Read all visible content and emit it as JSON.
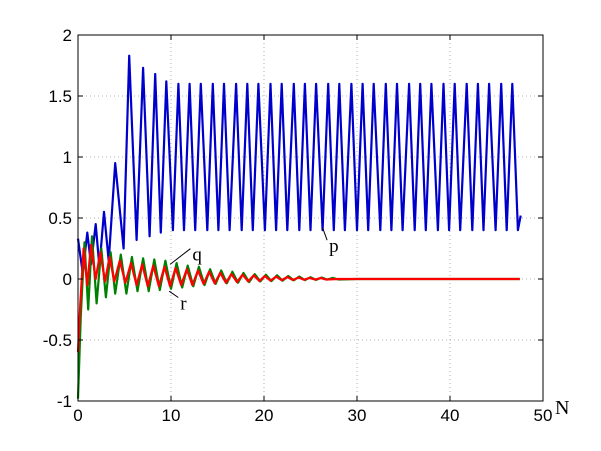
{
  "chart_data": {
    "type": "line",
    "xlabel": "N",
    "ylabel": "",
    "xlim": [
      0,
      50
    ],
    "ylim": [
      -1,
      2
    ],
    "xticks": [
      "0",
      "10",
      "20",
      "30",
      "40",
      "50"
    ],
    "yticks": [
      "-1",
      "-0.5",
      "0",
      "0.5",
      "1",
      "1.5",
      "2"
    ],
    "grid": true,
    "series": [
      {
        "name": "p",
        "color": "#0000cc",
        "x": [
          0,
          0.5,
          1.0,
          1.4,
          1.9,
          2.3,
          2.8,
          3.3,
          4.0,
          4.9,
          5.5,
          6.3,
          7.0,
          7.7,
          8.3,
          8.9,
          9.5,
          10.2,
          10.8,
          11.4,
          12.0,
          12.6,
          13.2,
          13.9,
          14.5,
          15.1,
          15.7,
          16.3,
          17.0,
          17.6,
          18.2,
          18.8,
          19.4,
          20.1,
          20.7,
          21.3,
          21.9,
          22.5,
          23.2,
          23.8,
          24.4,
          25.0,
          25.6,
          26.3,
          26.9,
          27.5,
          28.1,
          28.7,
          29.4,
          30.0,
          30.6,
          31.2,
          31.8,
          32.5,
          33.1,
          33.7,
          34.3,
          34.9,
          35.6,
          36.2,
          36.8,
          37.4,
          38.0,
          38.7,
          39.3,
          39.9,
          40.5,
          41.1,
          41.8,
          42.4,
          43.0,
          43.6,
          44.2,
          44.9,
          45.5,
          46.1,
          46.7,
          47.3,
          47.6
        ],
        "y": [
          0.33,
          0.05,
          0.38,
          0.12,
          0.45,
          0.1,
          0.55,
          0.15,
          0.95,
          0.25,
          1.83,
          0.32,
          1.73,
          0.35,
          1.68,
          0.38,
          1.62,
          0.4,
          1.6,
          0.4,
          1.6,
          0.4,
          1.6,
          0.4,
          1.6,
          0.4,
          1.6,
          0.4,
          1.6,
          0.4,
          1.6,
          0.4,
          1.6,
          0.4,
          1.6,
          0.4,
          1.6,
          0.4,
          1.6,
          0.4,
          1.6,
          0.4,
          1.6,
          0.4,
          1.6,
          0.4,
          1.6,
          0.4,
          1.6,
          0.4,
          1.6,
          0.4,
          1.6,
          0.4,
          1.6,
          0.4,
          1.6,
          0.4,
          1.6,
          0.4,
          1.6,
          0.4,
          1.6,
          0.4,
          1.6,
          0.4,
          1.6,
          0.4,
          1.6,
          0.4,
          1.6,
          0.4,
          1.6,
          0.4,
          1.6,
          0.4,
          1.6,
          0.4,
          0.52
        ]
      },
      {
        "name": "q",
        "color": "#008000",
        "x": [
          0,
          0.3,
          0.7,
          1.1,
          1.5,
          2.0,
          2.5,
          3.0,
          3.5,
          4.0,
          4.6,
          5.2,
          5.8,
          6.4,
          7.0,
          7.6,
          8.2,
          8.8,
          9.4,
          10.0,
          10.6,
          11.2,
          11.8,
          12.4,
          13.0,
          13.6,
          14.2,
          14.8,
          15.4,
          16.0,
          16.6,
          17.2,
          17.8,
          18.4,
          19.0,
          19.6,
          20.2,
          20.8,
          21.4,
          22.0,
          22.6,
          23.2,
          23.8,
          24.4,
          25.0,
          25.6,
          26.2,
          26.8,
          27.4,
          28.0,
          30.0,
          35.0,
          40.0,
          47.5
        ],
        "y": [
          -0.98,
          -0.3,
          0.3,
          -0.25,
          0.35,
          -0.2,
          0.25,
          -0.15,
          0.22,
          -0.12,
          0.2,
          -0.12,
          0.18,
          -0.1,
          0.17,
          -0.1,
          0.16,
          -0.09,
          0.15,
          -0.08,
          0.13,
          -0.07,
          0.11,
          -0.06,
          0.1,
          -0.05,
          0.08,
          -0.04,
          0.07,
          -0.035,
          0.06,
          -0.03,
          0.05,
          -0.025,
          0.04,
          -0.02,
          0.035,
          -0.017,
          0.03,
          -0.014,
          0.025,
          -0.011,
          0.02,
          -0.009,
          0.015,
          -0.007,
          0.012,
          -0.005,
          0.009,
          -0.004,
          0.0,
          0.0,
          0.0,
          0.0
        ]
      },
      {
        "name": "r",
        "color": "#ff0000",
        "x": [
          0,
          0.25,
          0.6,
          1.0,
          1.4,
          1.9,
          2.4,
          2.9,
          3.4,
          3.9,
          4.5,
          5.1,
          5.7,
          6.3,
          6.9,
          7.5,
          8.1,
          8.7,
          9.3,
          9.9,
          10.5,
          11.1,
          11.7,
          12.3,
          12.9,
          13.5,
          14.1,
          14.7,
          15.3,
          15.9,
          16.5,
          17.1,
          17.7,
          18.3,
          18.9,
          19.5,
          20.1,
          20.7,
          21.3,
          21.9,
          22.5,
          23.1,
          23.7,
          24.3,
          24.9,
          25.5,
          26.1,
          26.7,
          28.0,
          30.0,
          35.0,
          40.0,
          47.5
        ],
        "y": [
          -0.6,
          -0.2,
          0.25,
          -0.05,
          0.28,
          0.0,
          0.22,
          -0.02,
          0.18,
          -0.02,
          0.15,
          -0.03,
          0.13,
          -0.05,
          0.12,
          -0.06,
          0.11,
          -0.06,
          0.1,
          -0.06,
          0.09,
          -0.05,
          0.08,
          -0.05,
          0.07,
          -0.04,
          0.06,
          -0.035,
          0.05,
          -0.03,
          0.04,
          -0.025,
          0.035,
          -0.02,
          0.03,
          -0.016,
          0.025,
          -0.013,
          0.02,
          -0.01,
          0.016,
          -0.008,
          0.012,
          -0.006,
          0.009,
          -0.005,
          0.007,
          -0.004,
          0.0,
          0.0,
          0.0,
          0.0,
          0.0
        ]
      }
    ],
    "annotations": [
      {
        "text": "p",
        "x": 27.0,
        "y": 0.22,
        "arrow_to_x": 26.3,
        "arrow_to_y": 0.42
      },
      {
        "text": "q",
        "x": 12.3,
        "y": 0.15,
        "arrow_to_x": 9.9,
        "arrow_to_y": 0.12
      },
      {
        "text": "r",
        "x": 11.0,
        "y": -0.25,
        "arrow_to_x": 9.8,
        "arrow_to_y": -0.1
      }
    ]
  }
}
